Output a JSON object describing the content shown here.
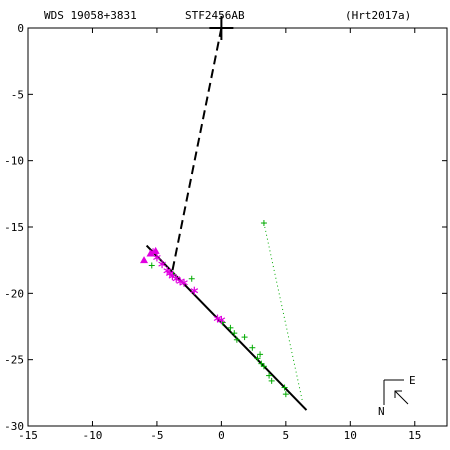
{
  "header": {
    "left": "WDS 19058+3831",
    "center": "STF2456AB",
    "right": "(Hrt2017a)"
  },
  "orientation": {
    "east_label": "E",
    "north_label": "N"
  },
  "chart_data": {
    "type": "scatter",
    "title": "",
    "xlabel": "",
    "ylabel": "",
    "xlim": [
      -15,
      17.5
    ],
    "ylim": [
      -30,
      0
    ],
    "x_ticks": [
      -15,
      -10,
      -5,
      0,
      5,
      10,
      15
    ],
    "y_ticks": [
      0,
      -5,
      -10,
      -15,
      -20,
      -25,
      -30
    ],
    "grid": false,
    "primary": {
      "x": 0,
      "y": 0,
      "marker": "large-plus"
    },
    "orbit_line": {
      "x": [
        -5.8,
        6.6
      ],
      "y": [
        -16.4,
        -28.8
      ],
      "color": "#000000"
    },
    "periastron_line": {
      "x": [
        0,
        -3.8
      ],
      "y": [
        0,
        -18.3
      ],
      "style": "dashed"
    },
    "series": [
      {
        "marker": "plus",
        "color": "#00aa00",
        "points": [
          [
            -5.4,
            -17.9
          ],
          [
            -3.7,
            -18.6
          ],
          [
            -2.3,
            -18.9
          ],
          [
            0.1,
            -22.2
          ],
          [
            0.7,
            -22.6
          ],
          [
            1.0,
            -23.0
          ],
          [
            1.2,
            -23.5
          ],
          [
            1.8,
            -23.3
          ],
          [
            2.4,
            -24.1
          ],
          [
            2.8,
            -24.9
          ],
          [
            3.0,
            -24.6
          ],
          [
            3.1,
            -25.3
          ],
          [
            3.3,
            -25.5
          ],
          [
            3.7,
            -26.2
          ],
          [
            3.9,
            -26.6
          ],
          [
            4.9,
            -27.1
          ],
          [
            5.0,
            -27.6
          ],
          [
            3.3,
            -14.7
          ]
        ]
      },
      {
        "marker": "asterisk",
        "color": "#e000e0",
        "points": [
          [
            -5.3,
            -16.9
          ],
          [
            -5.0,
            -17.3
          ],
          [
            -4.6,
            -17.8
          ],
          [
            -4.2,
            -18.3
          ],
          [
            -4.0,
            -18.5
          ],
          [
            -3.8,
            -18.7
          ],
          [
            -3.5,
            -18.9
          ],
          [
            -3.2,
            -19.1
          ],
          [
            -2.9,
            -19.2
          ],
          [
            -2.1,
            -19.8
          ],
          [
            -0.3,
            -21.9
          ],
          [
            0.0,
            -22.0
          ]
        ]
      },
      {
        "marker": "triangle",
        "color": "#e000e0",
        "points": [
          [
            -6.0,
            -17.5
          ],
          [
            -5.5,
            -17.0
          ],
          [
            -5.1,
            -16.8
          ]
        ]
      }
    ],
    "residual_line": {
      "x": [
        3.3,
        6.3
      ],
      "y": [
        -14.7,
        -28.2
      ],
      "style": "dotted",
      "color": "#00aa00"
    }
  }
}
